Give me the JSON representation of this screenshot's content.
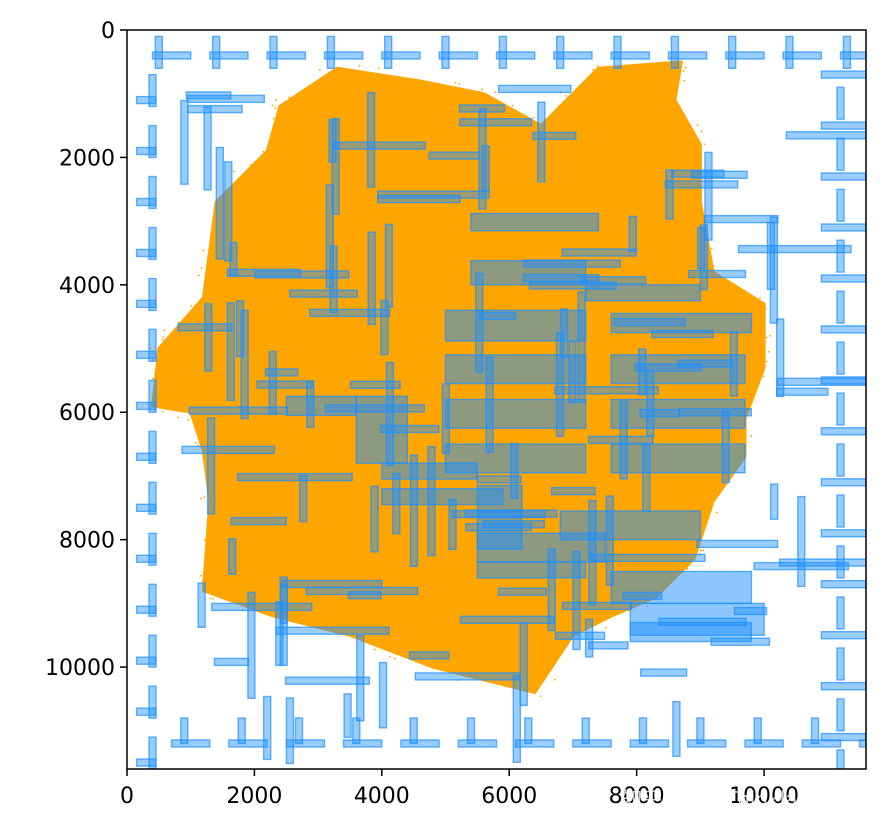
{
  "chart_data": {
    "type": "scatter",
    "title": "",
    "xlabel": "",
    "ylabel": "",
    "xlim": [
      0,
      11600
    ],
    "ylim": [
      11600,
      0
    ],
    "y_inverted": true,
    "grid": false,
    "x_ticks": [
      "0",
      "2000",
      "4000",
      "6000",
      "8000",
      "10000"
    ],
    "y_ticks": [
      "0",
      "2000",
      "4000",
      "6000",
      "8000",
      "10000"
    ],
    "layers": [
      {
        "name": "",
        "kind": "point-cloud",
        "color": "#ffa500",
        "outline": [
          [
            3300,
            600
          ],
          [
            4600,
            800
          ],
          [
            5600,
            1000
          ],
          [
            6500,
            1500
          ],
          [
            7400,
            600
          ],
          [
            8700,
            500
          ],
          [
            8600,
            1100
          ],
          [
            9000,
            1800
          ],
          [
            9000,
            2700
          ],
          [
            9200,
            3800
          ],
          [
            10000,
            4300
          ],
          [
            10000,
            5300
          ],
          [
            9700,
            6100
          ],
          [
            9700,
            6700
          ],
          [
            9200,
            7400
          ],
          [
            8900,
            8300
          ],
          [
            8300,
            8900
          ],
          [
            7600,
            9200
          ],
          [
            7000,
            9500
          ],
          [
            6400,
            10400
          ],
          [
            5600,
            10200
          ],
          [
            4800,
            10000
          ],
          [
            3500,
            9500
          ],
          [
            2300,
            9200
          ],
          [
            1200,
            8800
          ],
          [
            1300,
            7400
          ],
          [
            1200,
            6600
          ],
          [
            1000,
            6000
          ],
          [
            400,
            5900
          ],
          [
            500,
            5000
          ],
          [
            1200,
            4200
          ],
          [
            1400,
            2700
          ],
          [
            2200,
            1900
          ],
          [
            2400,
            1200
          ]
        ]
      },
      {
        "name": "",
        "kind": "rectangles",
        "color": "#1e90ff",
        "fill_rects": [
          [
            5400,
            2880,
            7400,
            3150
          ],
          [
            5400,
            3620,
            7200,
            4000
          ],
          [
            7200,
            4000,
            9000,
            4250
          ],
          [
            5000,
            4400,
            7200,
            4880
          ],
          [
            7600,
            4450,
            9800,
            4750
          ],
          [
            5000,
            5100,
            7200,
            5550
          ],
          [
            7600,
            5100,
            9700,
            5550
          ],
          [
            5000,
            5800,
            7200,
            6250
          ],
          [
            7600,
            5800,
            9700,
            6250
          ],
          [
            2500,
            5750,
            3600,
            6050
          ],
          [
            3600,
            5750,
            4400,
            6800
          ],
          [
            5000,
            6500,
            7200,
            6950
          ],
          [
            7600,
            6500,
            9700,
            6950
          ],
          [
            4000,
            6800,
            5500,
            7050
          ],
          [
            4000,
            7200,
            5900,
            7450
          ],
          [
            5500,
            7150,
            6200,
            8150
          ],
          [
            6800,
            7550,
            9000,
            8000
          ],
          [
            5500,
            7900,
            7500,
            8350
          ],
          [
            5500,
            8350,
            7200,
            8600
          ],
          [
            7600,
            8500,
            9800,
            9000
          ],
          [
            7900,
            9000,
            10000,
            9500
          ],
          [
            7900,
            9300,
            9800,
            9600
          ]
        ]
      }
    ]
  },
  "watermark": "知乎 @situThinklab"
}
